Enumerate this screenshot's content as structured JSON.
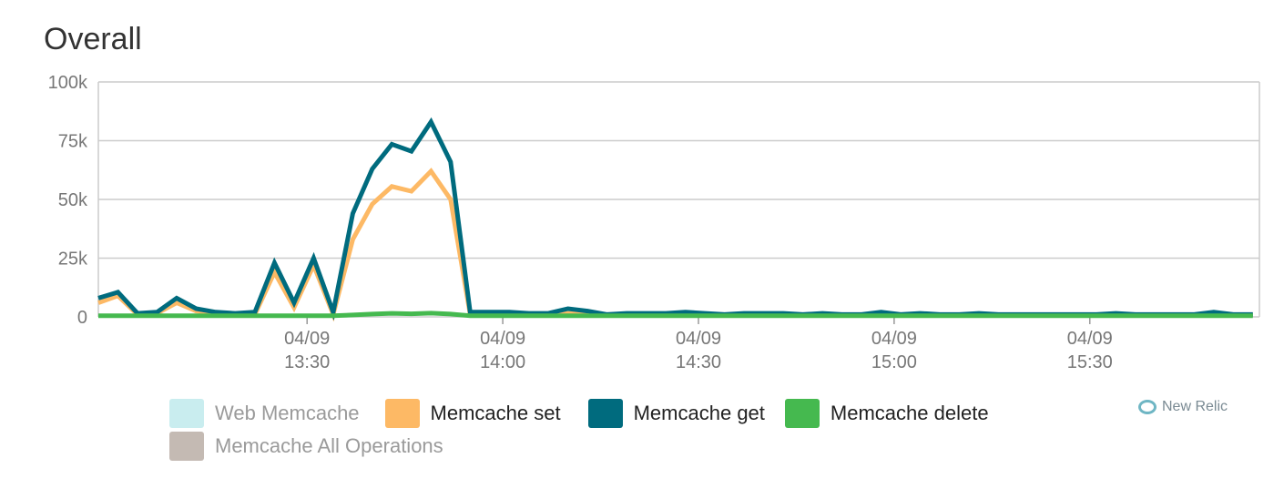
{
  "title": "Overall",
  "chart_data": {
    "type": "line",
    "y_ticks": [
      "0",
      "25k",
      "50k",
      "75k",
      "100k"
    ],
    "ylim": [
      0,
      100000
    ],
    "x_ticks": [
      {
        "date": "04/09",
        "time": "13:30"
      },
      {
        "date": "04/09",
        "time": "14:00"
      },
      {
        "date": "04/09",
        "time": "14:30"
      },
      {
        "date": "04/09",
        "time": "15:00"
      },
      {
        "date": "04/09",
        "time": "15:30"
      }
    ],
    "x_start": "12:58",
    "x_end": "15:56",
    "x_step_minutes": 3,
    "grid": true,
    "series": [
      {
        "name": "Memcache set",
        "color": "#fdb965",
        "values": [
          6000,
          9000,
          1000,
          1500,
          6000,
          2500,
          1500,
          1000,
          1000,
          19000,
          4000,
          22000,
          1000,
          33000,
          48000,
          55500,
          53500,
          62000,
          50000,
          1000,
          1000,
          1000,
          800,
          800,
          1500,
          1200,
          800,
          800,
          800,
          800,
          800,
          800,
          800,
          800,
          800,
          800,
          800,
          800,
          800,
          800,
          800,
          800,
          800,
          800,
          800,
          800,
          800,
          800,
          800,
          800,
          800,
          800,
          800,
          800,
          800,
          800,
          800,
          800,
          800,
          800
        ]
      },
      {
        "name": "Memcache get",
        "color": "#006b7e",
        "values": [
          8000,
          10500,
          1500,
          2000,
          8000,
          3500,
          2000,
          1500,
          2000,
          23000,
          6000,
          25000,
          2000,
          44000,
          63000,
          73500,
          70500,
          83000,
          66000,
          2000,
          2000,
          2000,
          1500,
          1500,
          3500,
          2500,
          1000,
          1500,
          1500,
          1500,
          2000,
          1500,
          1000,
          1500,
          1500,
          1500,
          1000,
          1500,
          1000,
          1000,
          2000,
          1000,
          1500,
          1000,
          1000,
          1500,
          1000,
          1000,
          1000,
          1000,
          1000,
          1000,
          1500,
          1000,
          1000,
          1000,
          1000,
          2000,
          1000,
          1000
        ]
      },
      {
        "name": "Memcache delete",
        "color": "#45b94f",
        "values": [
          500,
          500,
          500,
          500,
          500,
          500,
          500,
          500,
          500,
          500,
          500,
          500,
          500,
          800,
          1200,
          1500,
          1300,
          1600,
          1200,
          500,
          500,
          500,
          500,
          500,
          500,
          500,
          500,
          500,
          500,
          500,
          500,
          500,
          500,
          500,
          500,
          500,
          500,
          500,
          500,
          500,
          500,
          500,
          500,
          500,
          500,
          500,
          500,
          500,
          500,
          500,
          500,
          500,
          500,
          500,
          500,
          500,
          500,
          500,
          500,
          500
        ]
      }
    ]
  },
  "legend": [
    {
      "label": "Web Memcache",
      "color": "#c9edef",
      "active": false
    },
    {
      "label": "Memcache set",
      "color": "#fdb965",
      "active": true
    },
    {
      "label": "Memcache get",
      "color": "#006b7e",
      "active": true
    },
    {
      "label": "Memcache delete",
      "color": "#45b94f",
      "active": true
    },
    {
      "label": "Memcache All Operations",
      "color": "#c4bab3",
      "active": false
    }
  ],
  "watermark": {
    "text": "New Relic",
    "icon": "new-relic-logo-icon"
  },
  "colors": {
    "active_text": "#222222",
    "inactive_text": "#9a9a9a",
    "grid": "#cccccc",
    "axis_text": "#777777"
  }
}
